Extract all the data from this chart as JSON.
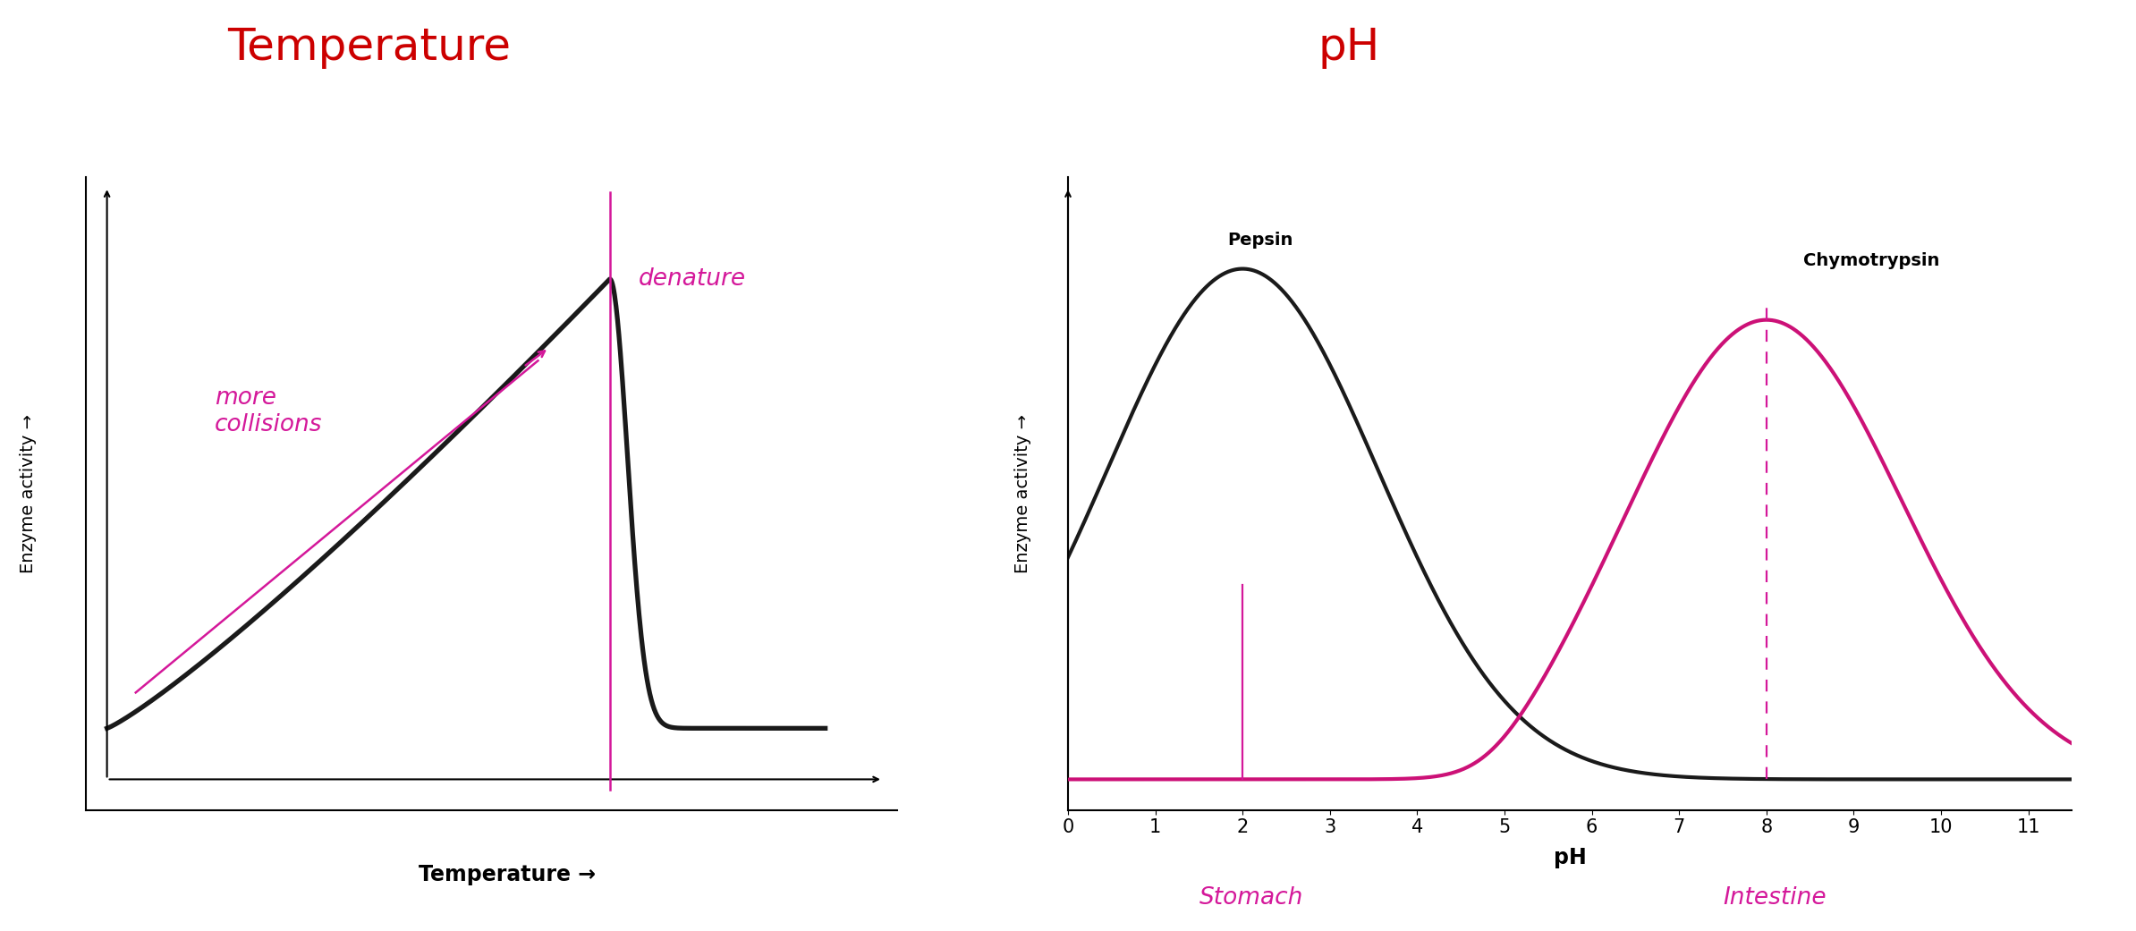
{
  "title_temp": "Temperature",
  "title_ph": "pH",
  "title_color": "#cc0000",
  "title_fontsize": 36,
  "temp_xlabel": "Temperature →",
  "temp_ylabel": "Enzyme activity →",
  "temp_xlabel_fontsize": 17,
  "temp_ylabel_fontsize": 14,
  "ph_xlabel": "pH",
  "ph_ylabel": "Enzyme activity →",
  "ph_xlabel_fontsize": 17,
  "ph_ylabel_fontsize": 14,
  "ph_xlim": [
    0,
    11.5
  ],
  "ph_xticks": [
    0,
    1,
    2,
    3,
    4,
    5,
    6,
    7,
    8,
    9,
    10,
    11
  ],
  "pepsin_label": "Pepsin",
  "chymo_label": "Chymotrypsin",
  "enzyme_label_fontsize": 14,
  "annotation_color": "#d4189a",
  "curve_color_black": "#1a1a1a",
  "curve_color_magenta": "#cc1177",
  "more_collisions_text": "more\ncollisions",
  "denature_text": "denature",
  "stomach_text": "Stomach",
  "intestine_text": "Intestine",
  "handwriting_fontsize": 19,
  "background_color": "#ffffff"
}
